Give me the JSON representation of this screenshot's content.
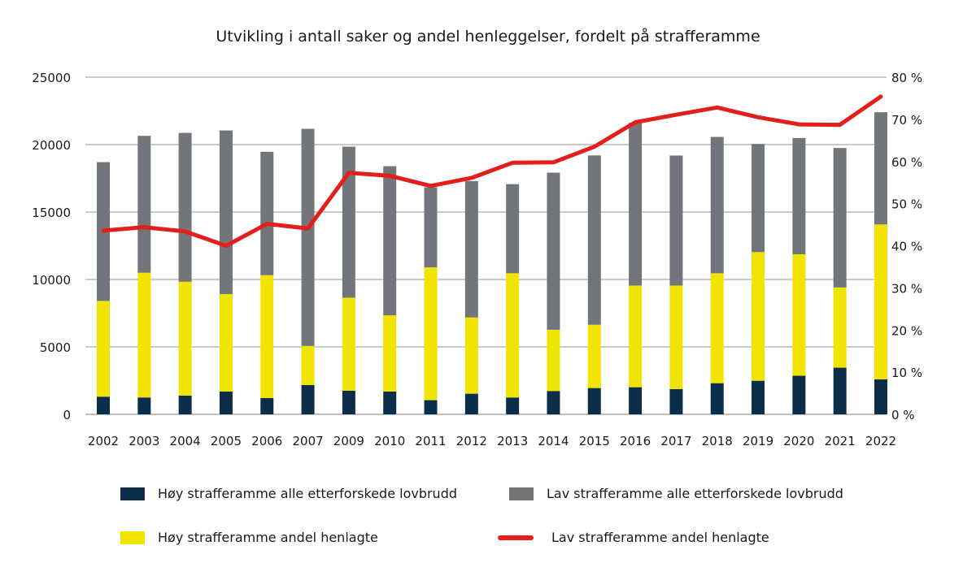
{
  "chart_data": {
    "type": "bar",
    "stacked": true,
    "title": "Utvikling i antall saker og andel henleggelser, fordelt på strafferamme",
    "categories": [
      "2002",
      "2003",
      "2004",
      "2005",
      "2006",
      "2007",
      "2009",
      "2010",
      "2011",
      "2012",
      "2013",
      "2014",
      "2015",
      "2016",
      "2017",
      "2018",
      "2019",
      "2020",
      "2021",
      "2022"
    ],
    "series": [
      {
        "name": "Høy strafferamme alle etterforskede lovbrudd",
        "type": "bar",
        "axis": "left",
        "color": "#0d2e4a",
        "values": [
          1310,
          1250,
          1390,
          1690,
          1210,
          2170,
          1750,
          1690,
          1050,
          1530,
          1250,
          1730,
          1950,
          2010,
          1870,
          2310,
          2490,
          2860,
          3460,
          2590
        ]
      },
      {
        "name": "Høy strafferamme andel henlagte",
        "type": "bar",
        "axis": "left",
        "color": "#f0e400",
        "values": [
          7100,
          9250,
          8440,
          7220,
          9110,
          2900,
          6900,
          5650,
          9850,
          5650,
          9210,
          4540,
          4690,
          7540,
          7680,
          8150,
          9540,
          9010,
          5950,
          11490
        ]
      },
      {
        "name": "Lav strafferamme alle etterforskede lovbrudd",
        "type": "bar",
        "axis": "left",
        "color": "#72767a",
        "values": [
          10290,
          10150,
          11040,
          12140,
          9150,
          16100,
          11200,
          11060,
          5930,
          10120,
          6610,
          11650,
          12560,
          12070,
          9640,
          10110,
          8020,
          8620,
          10340,
          8320
        ]
      },
      {
        "name": "Lav strafferamme andel henlagte",
        "type": "line",
        "axis": "right",
        "color": "#e41e1a",
        "values": [
          43.6,
          44.4,
          43.4,
          40.0,
          45.2,
          44.1,
          57.3,
          56.6,
          54.2,
          56.1,
          59.7,
          59.8,
          63.5,
          69.3,
          71.1,
          72.8,
          70.5,
          68.8,
          68.7,
          75.4
        ]
      }
    ],
    "ylim": [
      0,
      25000
    ],
    "y_ticks": [
      "0",
      "5000",
      "10000",
      "15000",
      "20000",
      "25000"
    ],
    "y2lim": [
      0,
      80
    ],
    "y2_ticks": [
      "0 %",
      "10 %",
      "20 %",
      "30 %",
      "40 %",
      "50 %",
      "60 %",
      "70 %",
      "80 %"
    ],
    "grid": true,
    "legend_position": "bottom"
  }
}
